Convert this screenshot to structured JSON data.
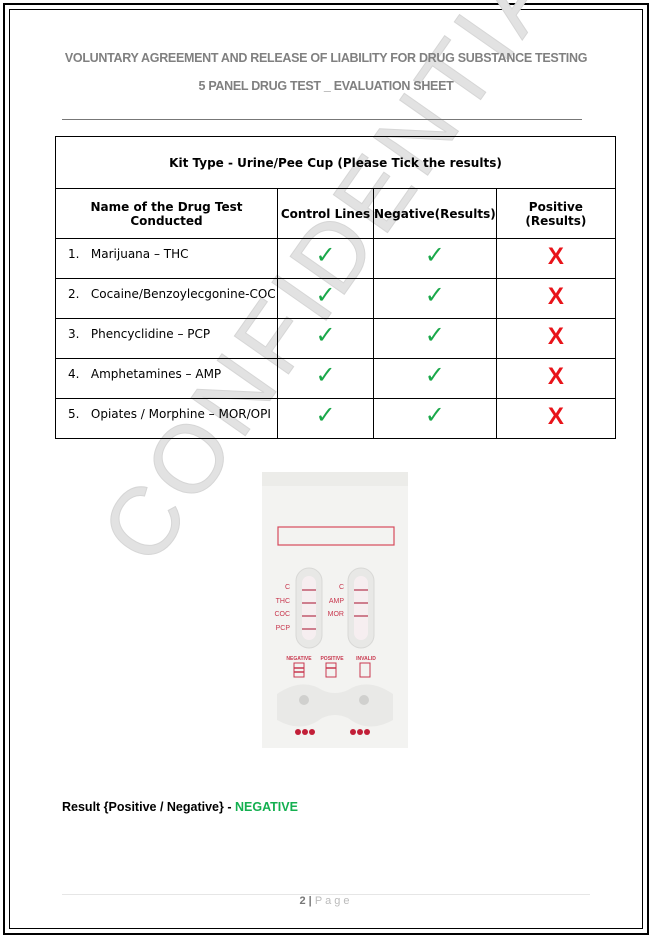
{
  "header": {
    "line1": "VOLUNTARY AGREEMENT AND RELEASE OF LIABILITY FOR DRUG SUBSTANCE TESTING",
    "line2": "5 PANEL DRUG TEST _ EVALUATION SHEET"
  },
  "table": {
    "title": "Kit Type - Urine/Pee Cup (Please Tick the results)",
    "columns": [
      "Name of the Drug Test Conducted",
      "Control Lines",
      "Negative(Results)",
      "Positive (Results)"
    ],
    "rows": [
      {
        "num": "1.",
        "name": "Marijuana – THC",
        "control": "✓",
        "negative": "✓",
        "positive": "X"
      },
      {
        "num": "2.",
        "name": "Cocaine/Benzoylecgonine-COC",
        "control": "✓",
        "negative": "✓",
        "positive": "X"
      },
      {
        "num": "3.",
        "name": "Phencyclidine – PCP",
        "control": "✓",
        "negative": "✓",
        "positive": "X"
      },
      {
        "num": "4.",
        "name": "Amphetamines – AMP",
        "control": "✓",
        "negative": "✓",
        "positive": "X"
      },
      {
        "num": "5.",
        "name": "Opiates / Morphine – MOR/OPI",
        "control": "✓",
        "negative": "✓",
        "positive": "X"
      }
    ]
  },
  "device": {
    "left_labels": [
      "C",
      "THC",
      "COC",
      "PCP"
    ],
    "right_labels": [
      "C",
      "AMP",
      "MOR"
    ],
    "legend": [
      "NEGATIVE",
      "POSITIVE",
      "INVALID"
    ],
    "ct": "C T"
  },
  "watermark": "CONFIDENTIAL",
  "result": {
    "label": "Result {Positive / Negative} - ",
    "value": "NEGATIVE"
  },
  "footer": {
    "page_num": "2",
    "sep": " | ",
    "page_word": "Page"
  },
  "colors": {
    "tick": "#1aa84a",
    "cross": "#e8141a",
    "negative": "#14b050"
  }
}
